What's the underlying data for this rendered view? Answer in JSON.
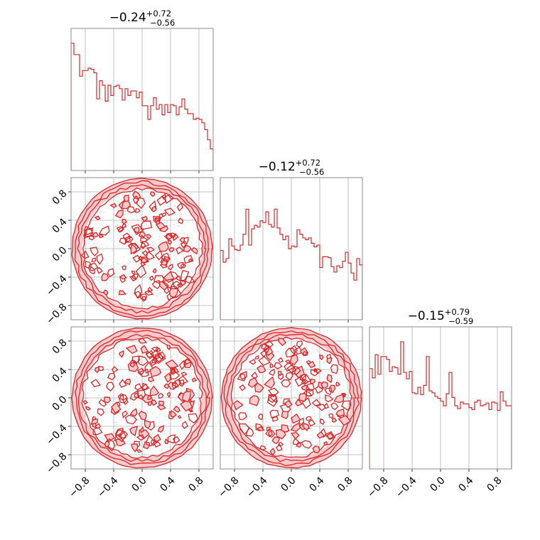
{
  "chart_data": {
    "type": "corner",
    "parameters": 3,
    "range": [
      -1,
      1
    ],
    "ticks": [
      -0.8,
      -0.4,
      0.0,
      0.4,
      0.8
    ],
    "tick_labels": [
      "−0.8",
      "−0.4",
      "0.0",
      "0.4",
      "0.8"
    ],
    "grid": true,
    "color": "#d62728",
    "fill_color": "#f9c9cc",
    "titles": [
      {
        "value": "−0.24",
        "upper": "+0.72",
        "lower": "−0.56"
      },
      {
        "value": "−0.12",
        "upper": "+0.72",
        "lower": "−0.56"
      },
      {
        "value": "−0.15",
        "upper": "+0.79",
        "lower": "−0.59"
      }
    ],
    "marginals": [
      {
        "bins": 50,
        "ylim": [
          0,
          1.25
        ],
        "values": [
          1.12,
          1.02,
          1.02,
          0.83,
          0.88,
          0.88,
          0.9,
          0.89,
          0.86,
          0.63,
          0.79,
          0.75,
          0.61,
          0.75,
          0.66,
          0.74,
          0.75,
          0.72,
          0.62,
          0.72,
          0.66,
          0.7,
          0.7,
          0.64,
          0.69,
          0.57,
          0.57,
          0.45,
          0.57,
          0.64,
          0.54,
          0.58,
          0.49,
          0.58,
          0.51,
          0.58,
          0.57,
          0.49,
          0.56,
          0.63,
          0.54,
          0.5,
          0.5,
          0.45,
          0.46,
          0.45,
          0.42,
          0.36,
          0.27,
          0.19
        ]
      },
      {
        "bins": 50,
        "ylim": [
          0,
          1.58
        ],
        "values": [
          0.77,
          0.64,
          0.68,
          0.9,
          0.82,
          0.78,
          0.77,
          0.83,
          0.95,
          1.23,
          0.83,
          1.01,
          1.05,
          1.03,
          1.1,
          1.08,
          1.2,
          1.06,
          1.03,
          1.23,
          1.02,
          0.95,
          0.89,
          0.93,
          0.79,
          0.82,
          0.81,
          1.0,
          0.95,
          0.91,
          0.89,
          0.91,
          0.85,
          0.81,
          0.83,
          0.58,
          0.7,
          0.7,
          0.69,
          0.59,
          0.53,
          0.6,
          0.58,
          0.65,
          0.75,
          0.63,
          0.52,
          0.44,
          0.68,
          0.61
        ]
      },
      {
        "bins": 50,
        "ylim": [
          0,
          1.53
        ],
        "values": [
          1.08,
          0.98,
          1.23,
          1.02,
          1.21,
          1.21,
          1.18,
          1.05,
          1.1,
          1.09,
          1.02,
          1.37,
          1.04,
          0.97,
          1.05,
          0.82,
          0.81,
          0.88,
          0.8,
          0.9,
          1.21,
          0.84,
          0.82,
          0.78,
          0.76,
          0.73,
          0.68,
          0.81,
          1.04,
          0.77,
          0.68,
          0.65,
          0.72,
          0.7,
          0.7,
          0.66,
          0.64,
          0.72,
          0.74,
          0.68,
          0.69,
          0.71,
          0.64,
          0.72,
          0.71,
          0.63,
          0.83,
          0.73,
          0.68,
          0.68
        ]
      }
    ],
    "joint_panels": [
      {
        "row": 1,
        "col": 0,
        "x_param": 0,
        "y_param": 1
      },
      {
        "row": 2,
        "col": 0,
        "x_param": 0,
        "y_param": 2
      },
      {
        "row": 2,
        "col": 1,
        "x_param": 1,
        "y_param": 2
      }
    ]
  }
}
